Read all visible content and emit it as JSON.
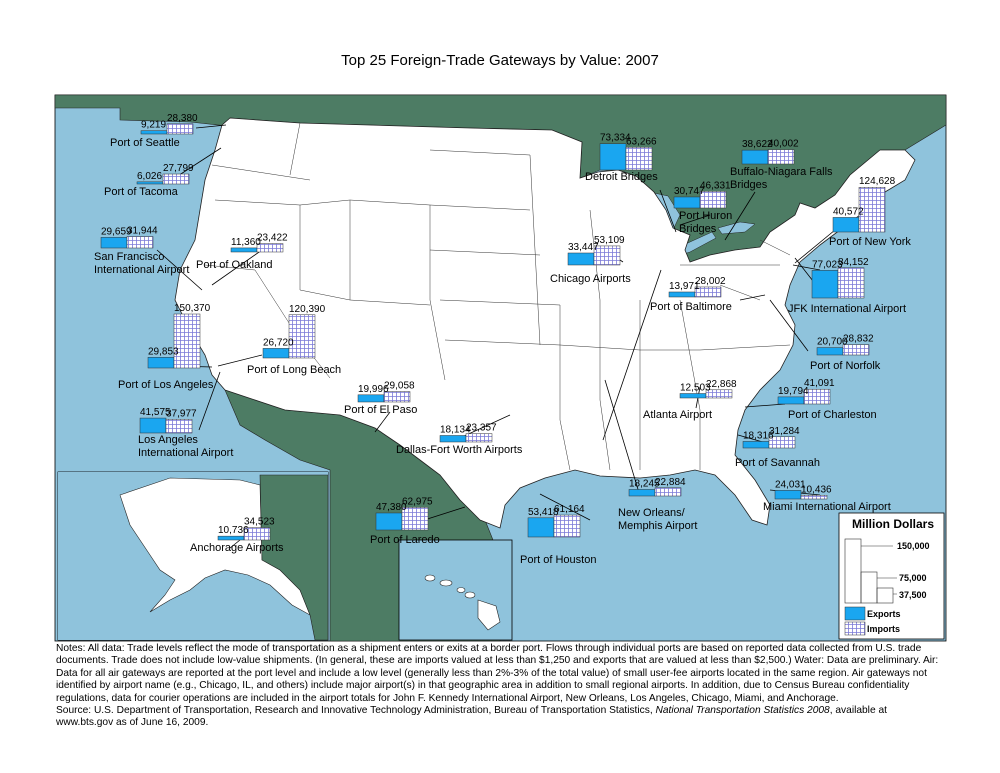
{
  "title": "Top 25 Foreign-Trade Gateways by Value:  2007",
  "colors": {
    "water": "#8fc3dc",
    "foreign_land": "#4d7c64",
    "us_land": "#ffffff",
    "exports": "#1aa6f0",
    "imports_grid": "#7b7ad8"
  },
  "legend": {
    "title": "Million Dollars",
    "ticks": [
      "150,000",
      "75,000",
      "37,500"
    ],
    "exports_label": "Exports",
    "imports_label": "Imports"
  },
  "gateways": [
    {
      "name": "Port of Seattle",
      "exports": "9,219",
      "imports": "28,380"
    },
    {
      "name": "Port of Tacoma",
      "exports": "6,026",
      "imports": "27,799"
    },
    {
      "name": "San Francisco International Airport",
      "line1": "San Francisco",
      "line2": "International Airport",
      "exports": "29,659",
      "imports": "31,944"
    },
    {
      "name": "Port of Oakland",
      "exports": "11,360",
      "imports": "23,422"
    },
    {
      "name": "Port of Los Angeles",
      "exports": "29,853",
      "imports": "150,370"
    },
    {
      "name": "Port of Long Beach",
      "exports": "26,720",
      "imports": "120,390"
    },
    {
      "name": "Los Angeles International Airport",
      "line1": "Los Angeles",
      "line2": "International Airport",
      "exports": "41,575",
      "imports": "37,977"
    },
    {
      "name": "Port of El Paso",
      "exports": "19,996",
      "imports": "29,058"
    },
    {
      "name": "Dallas-Fort Worth Airports",
      "exports": "18,134",
      "imports": "23,357"
    },
    {
      "name": "Port of Laredo",
      "exports": "47,380",
      "imports": "62,975"
    },
    {
      "name": "Port of Houston",
      "exports": "53,418",
      "imports": "61,164"
    },
    {
      "name": "New Orleans/ Memphis Airport",
      "line1": "New Orleans/",
      "line2": "Memphis Airport",
      "exports": "18,245",
      "imports": "22,884"
    },
    {
      "name": "Chicago Airports",
      "exports": "33,447",
      "imports": "53,109"
    },
    {
      "name": "Detroit Bridges",
      "exports": "73,334",
      "imports": "63,266"
    },
    {
      "name": "Port Huron Bridges",
      "line1": "Port Huron",
      "line2": "Bridges",
      "exports": "30,747",
      "imports": "46,331"
    },
    {
      "name": "Buffalo-Niagara Falls Bridges",
      "line1": "Buffalo-Niagara Falls",
      "line2": "Bridges",
      "exports": "38,622",
      "imports": "40,002"
    },
    {
      "name": "Port of New York",
      "exports": "40,572",
      "imports": "124,628"
    },
    {
      "name": "JFK International Airport",
      "exports": "77,023",
      "imports": "84,152"
    },
    {
      "name": "Port of Baltimore",
      "exports": "13,971",
      "imports": "28,002"
    },
    {
      "name": "Port of Norfolk",
      "exports": "20,700",
      "imports": "28,832"
    },
    {
      "name": "Atlanta Airport",
      "exports": "12,503",
      "imports": "22,868"
    },
    {
      "name": "Port of Charleston",
      "exports": "19,794",
      "imports": "41,091"
    },
    {
      "name": "Port of Savannah",
      "exports": "18,316",
      "imports": "31,284"
    },
    {
      "name": "Miami International Airport",
      "exports": "24,031",
      "imports": "10,436"
    },
    {
      "name": "Anchorage Airports",
      "exports": "10,736",
      "imports": "34,523"
    }
  ],
  "notes": {
    "notes_text": "Notes:  All data:  Trade levels reflect the mode of transportation as a shipment enters or exits at a border port.  Flows through individual ports are based on reported data collected from U.S. trade documents.  Trade does not include low-value shipments.  (In general, these are imports valued at less than $1,250 and exports that are valued at less than $2,500.)  Water:  Data are preliminary.  Air:  Data for all air gateways are reported at the port level and include a low level (generally less than 2%-3% of the total value) of small user-fee airports located in the same region.  Air gateways not identified by airport name (e.g., Chicago, IL, and others) include major airport(s) in that geographic area in addition to small regional airports.  In addition, due to Census Bureau confidentiality regulations, data for courier operations are included in the airport totals for John F. Kennedy International Airport, New Orleans, Los Angeles, Chicago, Miami, and Anchorage.",
    "source_prefix": "Source:  U.S. Department of Transportation, Research and Innovative Technology Administration, Bureau of Transportation Statistics, ",
    "source_title": "National Transportation Statistics 2008",
    "source_suffix": ", available at www.bts.gov as of June 16, 2009."
  }
}
